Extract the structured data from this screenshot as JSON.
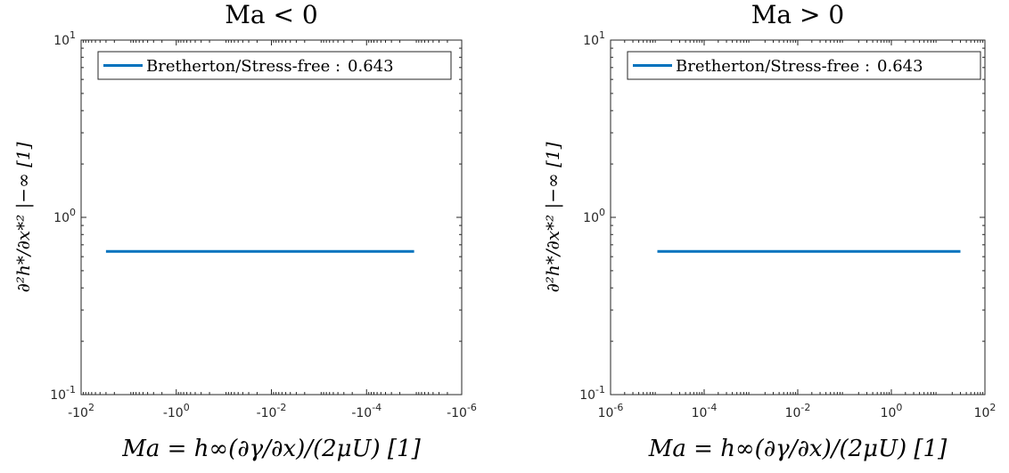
{
  "chart_data": [
    {
      "type": "line",
      "title": "Ma < 0",
      "xlabel": "Ma = h∞(∂γ/∂x)/(2μU)  [1]",
      "ylabel": "∂²h*/∂x*² |−∞  [1]",
      "xscale": "log",
      "xreversed": true,
      "yscale": "log",
      "xlim": [
        -100,
        -1e-06
      ],
      "ylim": [
        0.1,
        10
      ],
      "xticks": [
        {
          "value": -100,
          "label": "-10",
          "exp": "2"
        },
        {
          "value": -1,
          "label": "-10",
          "exp": "0"
        },
        {
          "value": -0.01,
          "label": "-10",
          "exp": "-2"
        },
        {
          "value": -0.0001,
          "label": "-10",
          "exp": "-4"
        },
        {
          "value": -1e-06,
          "label": "-10",
          "exp": "-6"
        }
      ],
      "yticks": [
        {
          "value": 10,
          "label": "10",
          "exp": "1"
        },
        {
          "value": 1,
          "label": "10",
          "exp": "0"
        },
        {
          "value": 0.1,
          "label": "10",
          "exp": "-1"
        }
      ],
      "legend_position": "top",
      "series": [
        {
          "name": "Bretherton/Stress-free :",
          "legend_value": "0.643",
          "color": "#0072BD",
          "x": [
            -30,
            -1e-05
          ],
          "y": [
            0.643,
            0.643
          ]
        }
      ]
    },
    {
      "type": "line",
      "title": "Ma > 0",
      "xlabel": "Ma = h∞(∂γ/∂x)/(2μU)  [1]",
      "ylabel": "∂²h*/∂x*² |−∞  [1]",
      "xscale": "log",
      "xreversed": false,
      "yscale": "log",
      "xlim": [
        1e-06,
        100
      ],
      "ylim": [
        0.1,
        10
      ],
      "xticks": [
        {
          "value": 1e-06,
          "label": "10",
          "exp": "-6"
        },
        {
          "value": 0.0001,
          "label": "10",
          "exp": "-4"
        },
        {
          "value": 0.01,
          "label": "10",
          "exp": "-2"
        },
        {
          "value": 1,
          "label": "10",
          "exp": "0"
        },
        {
          "value": 100,
          "label": "10",
          "exp": "2"
        }
      ],
      "yticks": [
        {
          "value": 10,
          "label": "10",
          "exp": "1"
        },
        {
          "value": 1,
          "label": "10",
          "exp": "0"
        },
        {
          "value": 0.1,
          "label": "10",
          "exp": "-1"
        }
      ],
      "legend_position": "top",
      "series": [
        {
          "name": "Bretherton/Stress-free :",
          "legend_value": "0.643",
          "color": "#0072BD",
          "x": [
            1e-05,
            30
          ],
          "y": [
            0.643,
            0.643
          ]
        }
      ]
    }
  ]
}
